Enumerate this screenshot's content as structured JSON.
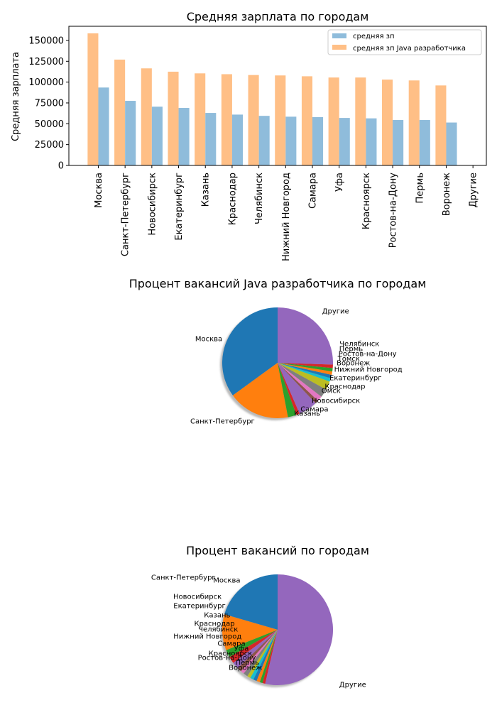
{
  "colors": {
    "blue": "#1f77b4",
    "orange": "#ff7f0e",
    "green": "#2ca02c",
    "red": "#d62728",
    "purple": "#9467bd",
    "brown": "#8c564b",
    "pink": "#e377c2",
    "gray": "#7f7f7f",
    "olive": "#bcbd22",
    "cyan": "#17becf",
    "bar_avg": "#8fbcdb",
    "bar_java": "#ffbf86"
  },
  "chart_data": [
    {
      "type": "bar",
      "title": "Средняя зарплата по городам",
      "ylabel": "Средняя зарплата",
      "xlabel": "",
      "ylim": [
        0,
        167000
      ],
      "yticks": [
        0,
        25000,
        50000,
        75000,
        100000,
        125000,
        150000
      ],
      "grid": false,
      "legend_position": "top-right",
      "categories": [
        "Москва",
        "Санкт-Петербург",
        "Новосибирск",
        "Екатеринбург",
        "Казань",
        "Краснодар",
        "Челябинск",
        "Нижний Новгород",
        "Самара",
        "Уфа",
        "Красноярск",
        "Ростов-на-Дону",
        "Пермь",
        "Воронеж",
        "Другие"
      ],
      "series": [
        {
          "name": "средняя зп",
          "color": "#8fbcdb",
          "values": [
            93500,
            77500,
            70500,
            69000,
            63000,
            61000,
            59500,
            58500,
            58000,
            57000,
            56500,
            54500,
            54500,
            51500,
            0
          ]
        },
        {
          "name": "средняя зп Java разработчика",
          "color": "#ffbf86",
          "values": [
            158500,
            127000,
            116500,
            112500,
            110500,
            109500,
            108500,
            108000,
            107000,
            105500,
            105500,
            103000,
            102000,
            96000,
            0
          ]
        }
      ]
    },
    {
      "type": "pie",
      "title": "Процент вакансий Java разработчика по городам",
      "shadow": true,
      "labels": [
        "Москва",
        "Санкт-Петербург",
        "Казань",
        "Самара",
        "Новосибирск",
        "Омск",
        "Краснодар",
        "Екатеринбург",
        "Нижний Новгород",
        "Воронеж",
        "Томск",
        "Ростов-на-Дону",
        "Пермь",
        "Челябинск",
        "Другие"
      ],
      "values": [
        35.0,
        18.0,
        2.5,
        1.0,
        5.5,
        1.0,
        1.5,
        2.5,
        2.5,
        1.0,
        1.0,
        1.0,
        1.0,
        1.0,
        25.5
      ],
      "colors": [
        "#1f77b4",
        "#ff7f0e",
        "#2ca02c",
        "#d62728",
        "#9467bd",
        "#8c564b",
        "#e377c2",
        "#7f7f7f",
        "#bcbd22",
        "#17becf",
        "#1f77b4",
        "#ff7f0e",
        "#2ca02c",
        "#d62728",
        "#9467bd"
      ]
    },
    {
      "type": "pie",
      "title": "Процент вакансий по городам",
      "shadow": true,
      "labels": [
        "Москва",
        "Санкт-Петербург",
        "Новосибирск",
        "Екатеринбург",
        "Казань",
        "Краснодар",
        "Челябинск",
        "Нижний Новгород",
        "Самара",
        "Уфа",
        "Красноярск",
        "Ростов-на-Дону",
        "Пермь",
        "Воронеж",
        "Другие"
      ],
      "values": [
        20.5,
        10.5,
        2.2,
        2.0,
        2.0,
        1.3,
        1.0,
        1.3,
        1.0,
        1.0,
        1.0,
        1.0,
        0.8,
        0.8,
        53.6
      ],
      "colors": [
        "#1f77b4",
        "#ff7f0e",
        "#2ca02c",
        "#d62728",
        "#9467bd",
        "#8c564b",
        "#e377c2",
        "#7f7f7f",
        "#bcbd22",
        "#17becf",
        "#1f77b4",
        "#ff7f0e",
        "#2ca02c",
        "#d62728",
        "#9467bd"
      ]
    }
  ]
}
